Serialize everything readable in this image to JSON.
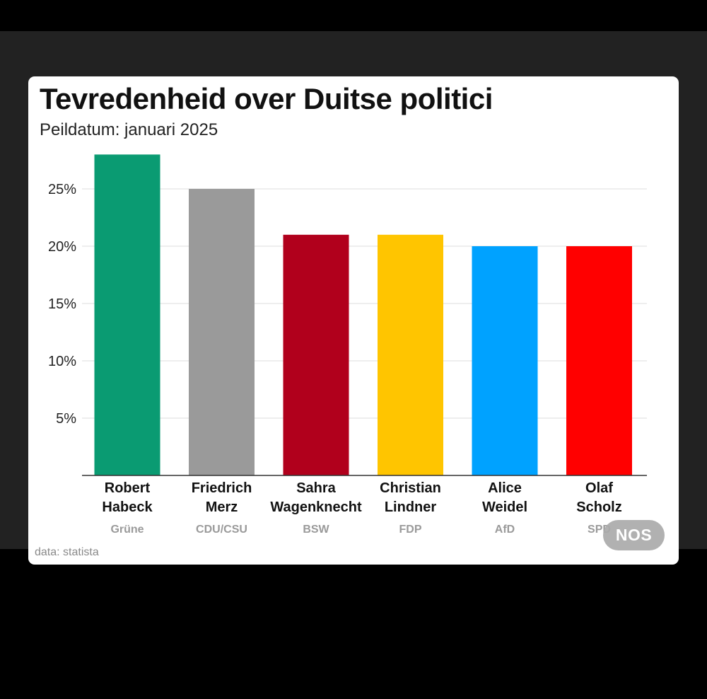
{
  "title": "Tevredenheid over Duitse politici",
  "subtitle": "Peildatum: januari 2025",
  "source": "data: statista",
  "logo_text": "NOS",
  "chart_data": {
    "type": "bar",
    "title": "Tevredenheid over Duitse politici",
    "subtitle": "Peildatum: januari 2025",
    "categories": [
      {
        "name": [
          "Robert",
          "Habeck"
        ],
        "party": "Grüne",
        "value": 28,
        "color": "#0a9b72"
      },
      {
        "name": [
          "Friedrich",
          "Merz"
        ],
        "party": "CDU/CSU",
        "value": 25,
        "color": "#9a9a9a"
      },
      {
        "name": [
          "Sahra",
          "Wagenknecht"
        ],
        "party": "BSW",
        "value": 21,
        "color": "#b1001c"
      },
      {
        "name": [
          "Christian",
          "Lindner"
        ],
        "party": "FDP",
        "value": 21,
        "color": "#ffc500"
      },
      {
        "name": [
          "Alice",
          "Weidel"
        ],
        "party": "AfD",
        "value": 20,
        "color": "#00a2ff"
      },
      {
        "name": [
          "Olaf",
          "Scholz"
        ],
        "party": "SPD",
        "value": 20,
        "color": "#ff0000"
      }
    ],
    "values": [
      28,
      25,
      21,
      21,
      20,
      20
    ],
    "yticks": [
      5,
      10,
      15,
      20,
      25
    ],
    "ytick_labels": [
      "5%",
      "10%",
      "15%",
      "20%",
      "25%"
    ],
    "ylim": [
      0,
      28
    ],
    "grid": true,
    "legend": "none"
  }
}
